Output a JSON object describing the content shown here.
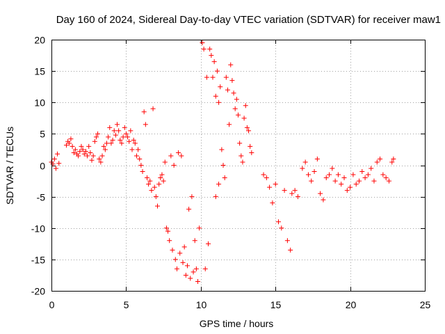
{
  "chart_data": {
    "type": "scatter",
    "title": "Day 160 of 2024, Sidereal Day-to-day VTEC variation (SDTVAR) for receiver maw1",
    "xlabel": "GPS time / hours",
    "ylabel": "SDTVAR / TECUs",
    "xlim": [
      0,
      25
    ],
    "ylim": [
      -20,
      20
    ],
    "xticks": [
      0,
      5,
      10,
      15,
      20,
      25
    ],
    "yticks": [
      -20,
      -15,
      -10,
      -5,
      0,
      5,
      10,
      15,
      20
    ],
    "xtick_labels": [
      "0",
      "5",
      "10",
      "15",
      "20",
      "25"
    ],
    "ytick_labels": [
      "-20",
      "-15",
      "-10",
      "-5",
      "0",
      "5",
      "10",
      "15",
      "20"
    ],
    "grid": true,
    "marker": "+",
    "marker_color": "#ff0000",
    "series": [
      {
        "name": "SDTVAR",
        "points": [
          [
            0.0,
            0.5
          ],
          [
            0.1,
            0.2
          ],
          [
            0.2,
            1.0
          ],
          [
            0.3,
            -0.5
          ],
          [
            0.4,
            1.8
          ],
          [
            0.5,
            0.3
          ],
          [
            1.0,
            3.2
          ],
          [
            1.1,
            3.8
          ],
          [
            1.2,
            3.5
          ],
          [
            1.3,
            4.2
          ],
          [
            1.4,
            3.0
          ],
          [
            1.5,
            2.0
          ],
          [
            1.6,
            2.5
          ],
          [
            1.7,
            1.8
          ],
          [
            1.8,
            1.5
          ],
          [
            1.9,
            2.2
          ],
          [
            2.0,
            3.0
          ],
          [
            2.1,
            2.5
          ],
          [
            2.2,
            1.8
          ],
          [
            2.3,
            2.2
          ],
          [
            2.4,
            1.5
          ],
          [
            2.5,
            3.0
          ],
          [
            2.6,
            2.0
          ],
          [
            2.7,
            0.8
          ],
          [
            2.8,
            1.5
          ],
          [
            2.9,
            3.8
          ],
          [
            3.0,
            4.5
          ],
          [
            3.1,
            5.0
          ],
          [
            3.2,
            1.0
          ],
          [
            3.3,
            0.5
          ],
          [
            3.4,
            1.5
          ],
          [
            3.5,
            3.0
          ],
          [
            3.6,
            2.5
          ],
          [
            3.7,
            3.5
          ],
          [
            3.8,
            4.5
          ],
          [
            3.9,
            6.0
          ],
          [
            4.0,
            3.5
          ],
          [
            4.1,
            4.0
          ],
          [
            4.2,
            5.5
          ],
          [
            4.3,
            4.8
          ],
          [
            4.4,
            6.5
          ],
          [
            4.5,
            5.5
          ],
          [
            4.6,
            4.0
          ],
          [
            4.7,
            3.5
          ],
          [
            4.8,
            4.5
          ],
          [
            4.9,
            6.0
          ],
          [
            5.0,
            5.0
          ],
          [
            5.1,
            4.5
          ],
          [
            5.2,
            3.8
          ],
          [
            5.3,
            5.5
          ],
          [
            5.4,
            2.5
          ],
          [
            5.5,
            4.0
          ],
          [
            5.6,
            3.5
          ],
          [
            5.7,
            1.5
          ],
          [
            5.8,
            2.5
          ],
          [
            5.9,
            1.0
          ],
          [
            6.0,
            0.0
          ],
          [
            6.1,
            -1.0
          ],
          [
            6.2,
            8.5
          ],
          [
            6.3,
            6.5
          ],
          [
            6.4,
            -2.0
          ],
          [
            6.5,
            -3.0
          ],
          [
            6.6,
            -2.5
          ],
          [
            6.7,
            -4.0
          ],
          [
            6.8,
            9.0
          ],
          [
            6.9,
            -3.5
          ],
          [
            7.0,
            -5.0
          ],
          [
            7.1,
            -6.5
          ],
          [
            7.2,
            -3.0
          ],
          [
            7.3,
            -2.0
          ],
          [
            7.4,
            -1.5
          ],
          [
            7.5,
            -2.5
          ],
          [
            7.6,
            0.5
          ],
          [
            7.7,
            -10.0
          ],
          [
            7.8,
            -10.5
          ],
          [
            7.9,
            -12.0
          ],
          [
            8.0,
            1.5
          ],
          [
            8.1,
            -13.5
          ],
          [
            8.2,
            0.0
          ],
          [
            8.3,
            -15.0
          ],
          [
            8.4,
            -16.5
          ],
          [
            8.5,
            2.0
          ],
          [
            8.6,
            -14.0
          ],
          [
            8.7,
            1.5
          ],
          [
            8.8,
            -15.5
          ],
          [
            8.9,
            -13.0
          ],
          [
            9.0,
            -17.5
          ],
          [
            9.1,
            -16.0
          ],
          [
            9.2,
            -7.0
          ],
          [
            9.3,
            -18.0
          ],
          [
            9.4,
            -5.0
          ],
          [
            9.5,
            -17.0
          ],
          [
            9.6,
            -12.0
          ],
          [
            9.7,
            -16.5
          ],
          [
            9.8,
            -18.5
          ],
          [
            9.9,
            -10.0
          ],
          [
            10.1,
            19.5
          ],
          [
            10.2,
            18.5
          ],
          [
            10.4,
            14.0
          ],
          [
            10.6,
            18.5
          ],
          [
            10.7,
            17.5
          ],
          [
            10.8,
            14.0
          ],
          [
            10.9,
            16.5
          ],
          [
            11.0,
            11.0
          ],
          [
            11.1,
            15.0
          ],
          [
            11.2,
            10.0
          ],
          [
            11.3,
            12.5
          ],
          [
            11.4,
            2.5
          ],
          [
            11.5,
            0.0
          ],
          [
            11.6,
            -2.0
          ],
          [
            11.7,
            14.0
          ],
          [
            11.8,
            12.0
          ],
          [
            11.9,
            6.5
          ],
          [
            12.0,
            16.0
          ],
          [
            12.1,
            13.5
          ],
          [
            12.2,
            11.5
          ],
          [
            12.3,
            9.0
          ],
          [
            12.4,
            10.5
          ],
          [
            12.5,
            8.0
          ],
          [
            12.6,
            3.5
          ],
          [
            12.7,
            1.5
          ],
          [
            12.8,
            0.5
          ],
          [
            12.9,
            7.5
          ],
          [
            13.0,
            9.5
          ],
          [
            13.1,
            6.0
          ],
          [
            13.2,
            5.5
          ],
          [
            13.3,
            3.0
          ],
          [
            13.4,
            2.0
          ],
          [
            10.3,
            -16.5
          ],
          [
            10.5,
            -12.5
          ],
          [
            11.0,
            -5.0
          ],
          [
            11.2,
            -3.0
          ],
          [
            14.2,
            -1.5
          ],
          [
            14.4,
            -2.0
          ],
          [
            14.6,
            -3.5
          ],
          [
            14.8,
            -6.0
          ],
          [
            15.0,
            -3.0
          ],
          [
            15.2,
            -9.0
          ],
          [
            15.4,
            -10.0
          ],
          [
            15.6,
            -4.0
          ],
          [
            15.8,
            -12.0
          ],
          [
            16.0,
            -13.5
          ],
          [
            16.1,
            -4.5
          ],
          [
            16.3,
            -4.0
          ],
          [
            16.5,
            -5.0
          ],
          [
            16.8,
            -0.5
          ],
          [
            17.0,
            0.5
          ],
          [
            17.2,
            -1.5
          ],
          [
            17.4,
            -2.5
          ],
          [
            17.6,
            -1.0
          ],
          [
            17.8,
            1.0
          ],
          [
            18.0,
            -4.5
          ],
          [
            18.2,
            -5.5
          ],
          [
            18.4,
            -2.0
          ],
          [
            18.6,
            -1.5
          ],
          [
            18.8,
            -0.5
          ],
          [
            19.0,
            -2.5
          ],
          [
            19.2,
            -1.5
          ],
          [
            19.4,
            -3.0
          ],
          [
            19.6,
            -2.0
          ],
          [
            19.8,
            -4.0
          ],
          [
            20.0,
            -3.5
          ],
          [
            20.2,
            -1.5
          ],
          [
            20.4,
            -3.0
          ],
          [
            20.6,
            -2.5
          ],
          [
            20.8,
            -1.0
          ],
          [
            21.0,
            -2.0
          ],
          [
            21.2,
            -1.5
          ],
          [
            21.4,
            -0.5
          ],
          [
            21.6,
            -2.5
          ],
          [
            21.8,
            0.5
          ],
          [
            22.0,
            1.0
          ],
          [
            22.2,
            -1.5
          ],
          [
            22.4,
            -2.0
          ],
          [
            22.6,
            -2.5
          ],
          [
            22.8,
            0.5
          ],
          [
            22.9,
            1.0
          ]
        ]
      }
    ]
  }
}
